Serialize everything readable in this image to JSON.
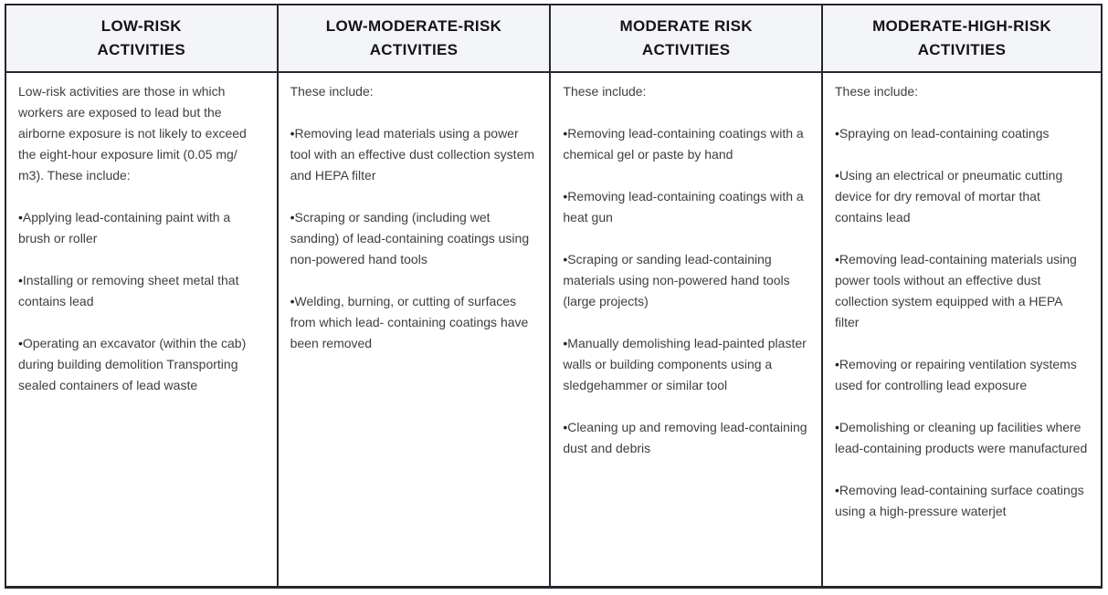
{
  "table": {
    "columns": [
      {
        "header": "LOW-RISK\nACTIVITIES",
        "intro": "Low-risk activities are those in which workers are exposed to lead but the airborne exposure is not likely to exceed the eight-hour exposure limit (0.05 mg/ m3). These include:",
        "items": [
          "Applying lead-containing paint with a brush or roller",
          "Installing or removing sheet metal that contains lead",
          "Operating an excavator (within the cab) during building demolition Transporting sealed containers of lead waste"
        ]
      },
      {
        "header": "LOW-MODERATE-RISK\nACTIVITIES",
        "intro": "These include:",
        "items": [
          "Removing lead materials using a power tool with an effective dust collection system and HEPA filter",
          "Scraping or sanding (including wet sanding) of lead-containing coatings using non-powered hand tools",
          "Welding, burning, or cutting of surfaces from which lead- containing coatings have been removed"
        ]
      },
      {
        "header": "MODERATE RISK\nACTIVITIES",
        "intro": "These include:",
        "items": [
          "Removing lead-containing coatings with a chemical gel or paste by hand",
          "Removing lead-containing coatings with a heat gun",
          "Scraping or sanding lead-containing materials using non-powered hand tools (large projects)",
          "Manually demolishing lead-painted plaster walls or building components using a sledgehammer or similar tool",
          "Cleaning up and removing lead-containing dust and debris"
        ]
      },
      {
        "header": "MODERATE-HIGH-RISK\nACTIVITIES",
        "intro": "These include:",
        "items": [
          "Spraying on lead-containing coatings",
          "Using an electrical or pneumatic cutting device for dry removal of mortar that contains lead",
          "Removing lead-containing materials using power tools without an effective dust collection system equipped with a HEPA filter",
          "Removing or repairing ventilation systems used for controlling lead exposure",
          "Demolishing or cleaning up facilities where lead-containing products were manufactured",
          "Removing lead-containing surface coatings using a high-pressure waterjet"
        ]
      }
    ],
    "colors": {
      "header_bg": "#f4f5f8",
      "border": "#26262e",
      "body_text": "#3e3e40",
      "header_text": "#141417"
    }
  }
}
